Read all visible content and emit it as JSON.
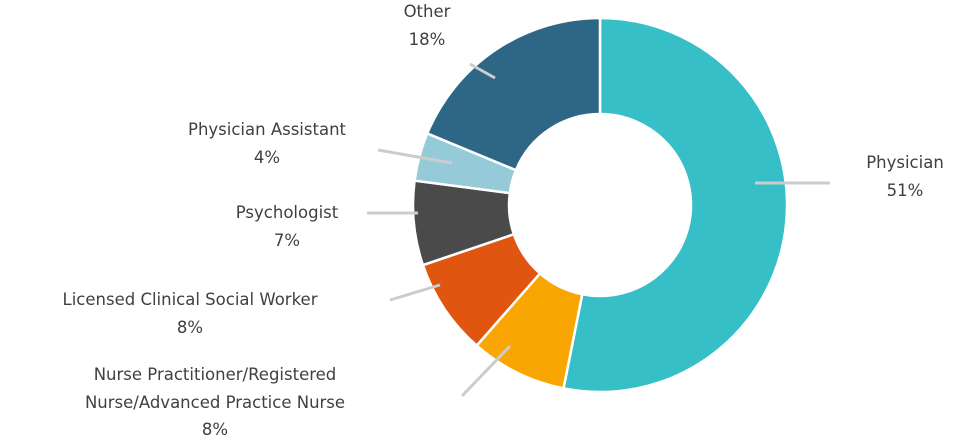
{
  "chart_data": {
    "type": "donut",
    "categories": [
      "Physician",
      "Nurse Practitioner/Registered Nurse/Advanced Practice Nurse",
      "Licensed Clinical Social Worker",
      "Psychologist",
      "Physician Assistant",
      "Other"
    ],
    "values": [
      51,
      8,
      8,
      7,
      4,
      18
    ],
    "value_labels": [
      "51%",
      "8%",
      "8%",
      "7%",
      "4%",
      "18%"
    ],
    "colors": [
      "#36bfc6",
      "#f9a602",
      "#e05510",
      "#4a4a4a",
      "#95cbd8",
      "#2e6785"
    ]
  }
}
